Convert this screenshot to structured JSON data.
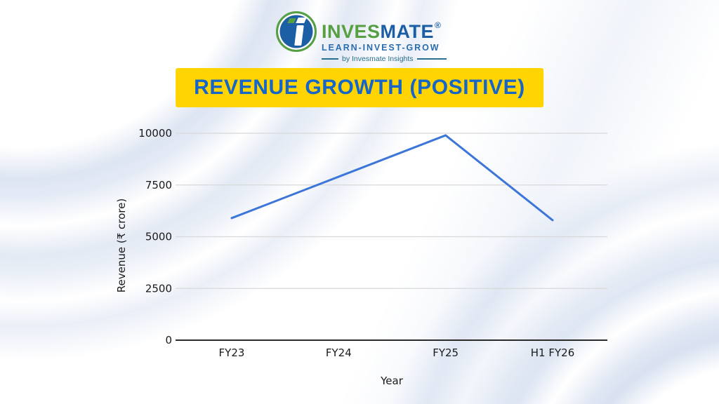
{
  "page": {
    "background": "#ffffff",
    "wave_color": "#c9d4ea"
  },
  "logo": {
    "brand_part1": "INVES",
    "brand_part2": "MATE",
    "registered_mark": "®",
    "tagline": "LEARN-INVEST-GROW",
    "byline": "by Invesmate Insights",
    "colors": {
      "green": "#56a041",
      "blue": "#1b5ea6",
      "tagline_blue": "#2a6dae",
      "byline_teal": "#27708e",
      "icon_fill_blue": "#1d5fa5",
      "icon_ring_green": "#56a041"
    }
  },
  "title_banner": {
    "text": "REVENUE GROWTH (POSITIVE)",
    "bg_color": "#ffd400",
    "text_color": "#1566c8"
  },
  "chart_data": {
    "type": "line",
    "title": "Revenue Growth (Positive)",
    "categories": [
      "FY23",
      "FY24",
      "FY25",
      "H1 FY26"
    ],
    "series": [
      {
        "name": "Revenue",
        "values": [
          5900,
          7900,
          9900,
          5800
        ]
      }
    ],
    "xlabel": "Year",
    "ylabel": "Revenue (₹ crore)",
    "yticks": [
      0,
      2500,
      5000,
      7500,
      10000
    ],
    "ylim": [
      0,
      10000
    ],
    "grid": true,
    "legend": false,
    "line_color": "#3d76d9",
    "grid_color": "#d8d8d8",
    "axis_color": "#2b2b2b",
    "tick_color": "#1a1a1a"
  }
}
